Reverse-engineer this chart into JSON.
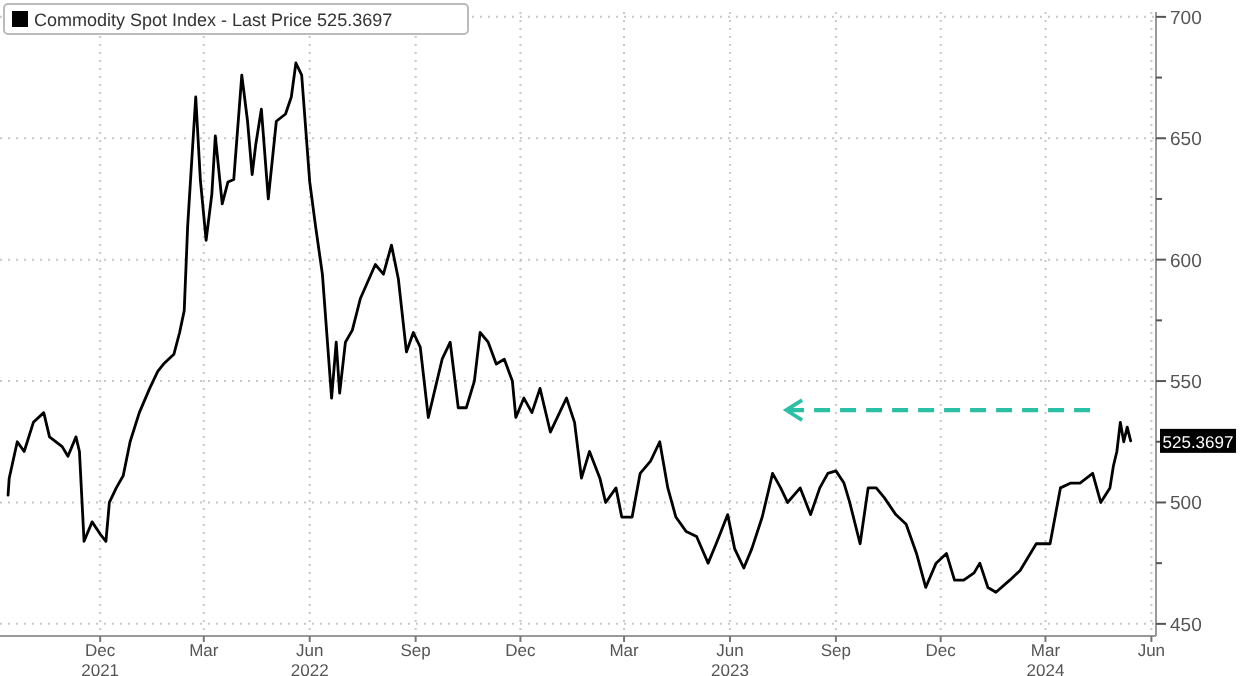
{
  "chart_data": {
    "type": "line",
    "legend": "top left",
    "grid": true,
    "line_style": "solid",
    "marker": "none",
    "xlim": [
      "2021-09-19",
      "2024-06-19"
    ],
    "xticks": [
      {
        "value": "2021-12-15",
        "label": "Dec\n2021"
      },
      {
        "value": "2022-03-15",
        "label": "Mar"
      },
      {
        "value": "2022-06-15",
        "label": "Jun\n2022"
      },
      {
        "value": "2022-09-15",
        "label": "Sep"
      },
      {
        "value": "2022-12-15",
        "label": "Dec"
      },
      {
        "value": "2023-03-15",
        "label": "Mar"
      },
      {
        "value": "2023-06-15",
        "label": "Jun\n2023"
      },
      {
        "value": "2023-09-15",
        "label": "Sep"
      },
      {
        "value": "2023-12-15",
        "label": "Dec"
      },
      {
        "value": "2024-03-15",
        "label": "Mar\n2024"
      },
      {
        "value": "2024-06-15",
        "label": "Jun"
      }
    ],
    "ylim": [
      445,
      702
    ],
    "yticks": [
      450,
      {
        "value": 475,
        "label": null
      },
      500,
      {
        "value": 525,
        "label": null
      },
      550,
      {
        "value": 575,
        "label": null
      },
      600,
      {
        "value": 625,
        "label": null
      },
      650,
      {
        "value": 675,
        "label": null
      },
      700
    ],
    "series": [
      {
        "name": "Commodity Spot Index - Last Price 525.3697",
        "color": "#000000",
        "x": [
          "2021-09-26",
          "2021-09-27",
          "2021-10-04",
          "2021-10-10",
          "2021-10-18",
          "2021-10-27",
          "2021-11-01",
          "2021-11-12",
          "2021-11-17",
          "2021-11-24",
          "2021-11-27",
          "2021-12-01",
          "2021-12-08",
          "2021-12-15",
          "2021-12-20",
          "2021-12-23",
          "2021-12-29",
          "2022-01-04",
          "2022-01-10",
          "2022-01-18",
          "2022-01-27",
          "2022-02-03",
          "2022-02-08",
          "2022-02-17",
          "2022-02-22",
          "2022-02-26",
          "2022-03-01",
          "2022-03-08",
          "2022-03-12",
          "2022-03-17",
          "2022-03-22",
          "2022-03-25",
          "2022-03-31",
          "2022-04-05",
          "2022-04-10",
          "2022-04-17",
          "2022-04-22",
          "2022-04-26",
          "2022-04-29",
          "2022-05-04",
          "2022-05-10",
          "2022-05-17",
          "2022-05-25",
          "2022-05-30",
          "2022-06-03",
          "2022-06-08",
          "2022-06-15",
          "2022-06-20",
          "2022-06-26",
          "2022-07-04",
          "2022-07-08",
          "2022-07-11",
          "2022-07-16",
          "2022-07-22",
          "2022-07-29",
          "2022-08-11",
          "2022-08-18",
          "2022-08-25",
          "2022-08-31",
          "2022-09-07",
          "2022-09-13",
          "2022-09-19",
          "2022-09-26",
          "2022-10-01",
          "2022-10-08",
          "2022-10-15",
          "2022-10-22",
          "2022-10-29",
          "2022-11-05",
          "2022-11-10",
          "2022-11-17",
          "2022-11-24",
          "2022-12-01",
          "2022-12-08",
          "2022-12-11",
          "2022-12-18",
          "2022-12-25",
          "2023-01-01",
          "2023-01-10",
          "2023-01-18",
          "2023-01-24",
          "2023-01-31",
          "2023-02-06",
          "2023-02-13",
          "2023-02-22",
          "2023-02-27",
          "2023-03-08",
          "2023-03-13",
          "2023-03-22",
          "2023-03-29",
          "2023-04-07",
          "2023-04-15",
          "2023-04-22",
          "2023-04-29",
          "2023-05-08",
          "2023-05-17",
          "2023-05-27",
          "2023-06-03",
          "2023-06-08",
          "2023-06-13",
          "2023-06-19",
          "2023-06-27",
          "2023-07-04",
          "2023-07-13",
          "2023-07-22",
          "2023-07-29",
          "2023-08-04",
          "2023-08-15",
          "2023-08-24",
          "2023-09-01",
          "2023-09-08",
          "2023-09-15",
          "2023-09-22",
          "2023-09-27",
          "2023-10-06",
          "2023-10-13",
          "2023-10-20",
          "2023-10-27",
          "2023-11-06",
          "2023-11-15",
          "2023-11-24",
          "2023-12-02",
          "2023-12-11",
          "2023-12-20",
          "2023-12-27",
          "2024-01-04",
          "2024-01-13",
          "2024-01-18",
          "2024-01-25",
          "2024-02-01",
          "2024-02-13",
          "2024-02-22",
          "2024-03-07",
          "2024-03-19",
          "2024-03-28",
          "2024-04-06",
          "2024-04-14",
          "2024-04-25",
          "2024-05-02",
          "2024-05-10",
          "2024-05-13",
          "2024-05-16",
          "2024-05-19",
          "2024-05-22",
          "2024-05-25",
          "2024-05-28"
        ],
        "values": [
          503,
          510,
          525,
          521,
          533,
          537,
          527,
          523,
          519,
          527,
          521,
          484,
          492,
          487,
          484,
          500,
          506,
          511,
          525,
          537,
          547,
          554,
          557,
          561,
          570,
          579,
          614,
          667,
          633,
          608,
          627,
          651,
          623,
          632,
          633,
          676,
          657,
          635,
          647,
          662,
          625,
          657,
          660,
          667,
          681,
          676,
          632,
          614,
          594,
          543,
          566,
          545,
          566,
          571,
          584,
          598,
          594,
          606,
          592,
          562,
          570,
          564,
          535,
          545,
          559,
          566,
          539,
          539,
          550,
          570,
          566,
          557,
          559,
          550,
          535,
          543,
          537,
          547,
          529,
          537,
          543,
          533,
          510,
          521,
          510,
          500,
          506,
          494,
          494,
          512,
          517,
          525,
          506,
          494,
          488,
          486,
          475,
          483,
          489,
          495,
          481,
          473,
          481,
          494,
          512,
          506,
          500,
          506,
          495,
          506,
          512,
          513,
          508,
          500,
          483,
          506,
          506,
          502,
          495,
          491,
          479,
          465,
          475,
          479,
          468,
          468,
          471,
          475,
          465,
          463,
          468,
          472,
          483,
          483,
          506,
          508,
          508,
          512,
          500,
          506,
          515,
          521,
          533,
          525,
          531,
          525.3697
        ],
        "value_labels": [
          null,
          null,
          null,
          null,
          null,
          null,
          null,
          null,
          null,
          null,
          null,
          null,
          null,
          null,
          null,
          null,
          null,
          null,
          null,
          null,
          null,
          null,
          null,
          null,
          null,
          null,
          null,
          null,
          null,
          null,
          null,
          null,
          null,
          null,
          null,
          null,
          null,
          null,
          null,
          null,
          null,
          null,
          null,
          null,
          null,
          null,
          null,
          null,
          null,
          null,
          null,
          null,
          null,
          null,
          null,
          null,
          null,
          null,
          null,
          null,
          null,
          null,
          null,
          null,
          null,
          null,
          null,
          null,
          null,
          null,
          null,
          null,
          null,
          null,
          null,
          null,
          null,
          null,
          null,
          null,
          null,
          null,
          null,
          null,
          null,
          null,
          null,
          null,
          null,
          null,
          null,
          null,
          null,
          null,
          null,
          null,
          null,
          null,
          null,
          null,
          null,
          null,
          null,
          null,
          null,
          null,
          null,
          null,
          null,
          null,
          null,
          null,
          null,
          null,
          null,
          null,
          null,
          null,
          null,
          null,
          null,
          null,
          null,
          null,
          null,
          null,
          null,
          null,
          null,
          null,
          null,
          null,
          null,
          null,
          null,
          null,
          null,
          null,
          null,
          null,
          null,
          null,
          null,
          null,
          null,
          "525.3697"
        ]
      }
    ]
  }
}
